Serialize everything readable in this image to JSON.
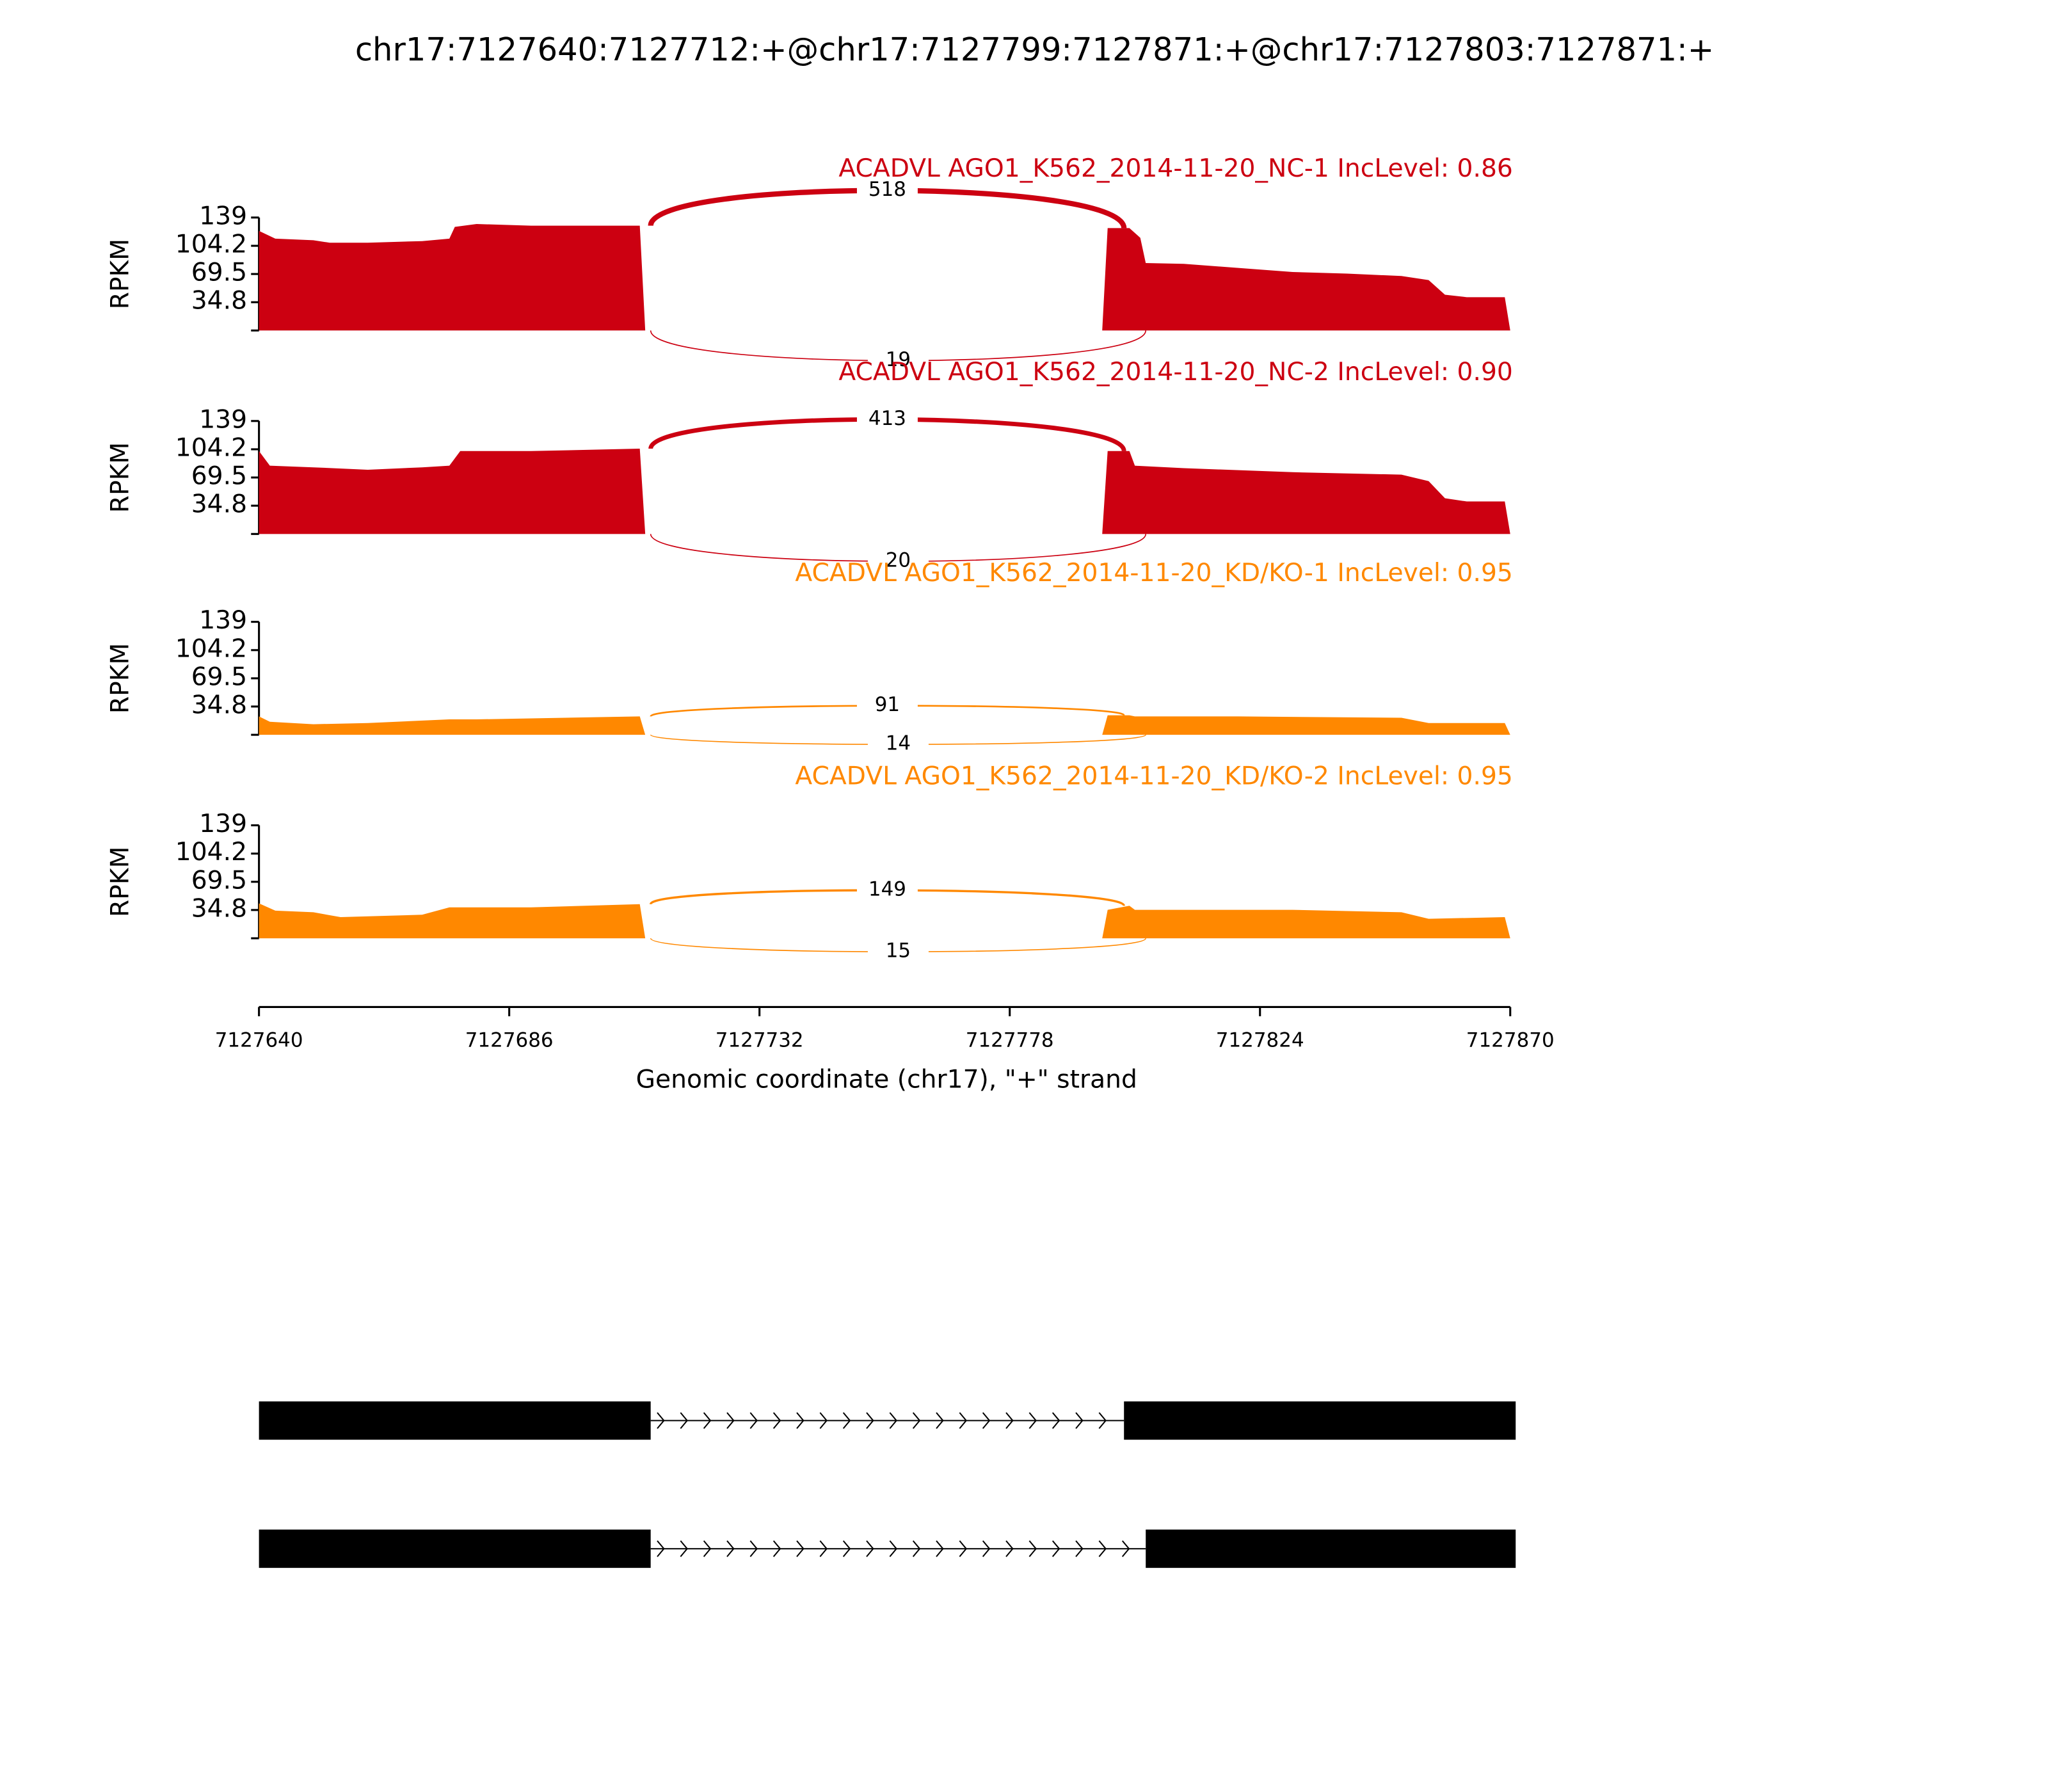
{
  "chart_data": {
    "type": "sashimi",
    "title": "chr17:7127640:7127712:+@chr17:7127799:7127871:+@chr17:7127803:7127871:+",
    "xlabel": "Genomic coordinate (chr17), \"+\" strand",
    "ylabel": "RPKM",
    "xlim": [
      7127640,
      7127870
    ],
    "xticks": [
      7127640,
      7127686,
      7127732,
      7127778,
      7127824,
      7127870
    ],
    "ylim": [
      0,
      139
    ],
    "yticks": [
      34.8,
      69.5,
      104.2,
      139
    ],
    "tracks": [
      {
        "name": "ACADVL AGO1_K562_2014-11-20_NC-1 IncLevel: 0.86",
        "color": "#cc0011",
        "x": [
          7127640,
          7127643,
          7127650,
          7127653,
          7127660,
          7127670,
          7127675,
          7127676,
          7127680,
          7127690,
          7127700,
          7127710,
          7127711,
          7127795,
          7127796,
          7127800,
          7127802,
          7127803,
          7127810,
          7127820,
          7127830,
          7127840,
          7127850,
          7127855,
          7127858,
          7127862,
          7127869,
          7127870
        ],
        "values": [
          122.6,
          113,
          111,
          108,
          108,
          110,
          113,
          127.5,
          131,
          129,
          129,
          129,
          0,
          0,
          126,
          126,
          114,
          83,
          82,
          77,
          72,
          70,
          67,
          62,
          44,
          41,
          41,
          0
        ],
        "junctions": [
          {
            "start": 7127712,
            "end": 7127799,
            "count": 518
          },
          {
            "start": 7127712,
            "end": 7127803,
            "count": 19
          }
        ]
      },
      {
        "name": "ACADVL AGO1_K562_2014-11-20_NC-2 IncLevel: 0.90",
        "color": "#cc0011",
        "x": [
          7127640,
          7127642,
          7127650,
          7127660,
          7127670,
          7127675,
          7127677,
          7127690,
          7127710,
          7127711,
          7127795,
          7127796,
          7127800,
          7127801,
          7127810,
          7127830,
          7127850,
          7127855,
          7127858,
          7127862,
          7127869,
          7127870
        ],
        "values": [
          102,
          84,
          82,
          79,
          82,
          84,
          102,
          102,
          105,
          0,
          0,
          102,
          102,
          84,
          81,
          76,
          73,
          65,
          44,
          40,
          40,
          0
        ],
        "junctions": [
          {
            "start": 7127712,
            "end": 7127799,
            "count": 413
          },
          {
            "start": 7127712,
            "end": 7127803,
            "count": 20
          }
        ]
      },
      {
        "name": "ACADVL AGO1_K562_2014-11-20_KD/KO-1 IncLevel: 0.95",
        "color": "#ff8800",
        "x": [
          7127640,
          7127642,
          7127650,
          7127660,
          7127675,
          7127680,
          7127710,
          7127711,
          7127795,
          7127796,
          7127800,
          7127801,
          7127820,
          7127850,
          7127855,
          7127869,
          7127870
        ],
        "values": [
          22.6,
          16,
          13,
          14.5,
          19,
          19,
          22.6,
          0,
          0,
          24,
          24,
          22.6,
          22.6,
          21,
          14.5,
          14.5,
          0
        ],
        "junctions": [
          {
            "start": 7127712,
            "end": 7127799,
            "count": 91
          },
          {
            "start": 7127712,
            "end": 7127803,
            "count": 14
          }
        ]
      },
      {
        "name": "ACADVL AGO1_K562_2014-11-20_KD/KO-2 IncLevel: 0.95",
        "color": "#ff8800",
        "x": [
          7127640,
          7127643,
          7127650,
          7127655,
          7127670,
          7127675,
          7127690,
          7127710,
          7127711,
          7127795,
          7127796,
          7127800,
          7127801,
          7127830,
          7127850,
          7127855,
          7127869,
          7127870
        ],
        "values": [
          43,
          34,
          32,
          26,
          29,
          38,
          38,
          42,
          0,
          0,
          35,
          40,
          35,
          35,
          32,
          24,
          26,
          0
        ],
        "junctions": [
          {
            "start": 7127712,
            "end": 7127799,
            "count": 149
          },
          {
            "start": 7127712,
            "end": 7127803,
            "count": 15
          }
        ]
      }
    ],
    "transcripts": [
      {
        "exons": [
          [
            7127640,
            7127712
          ],
          [
            7127799,
            7127871
          ]
        ]
      },
      {
        "exons": [
          [
            7127640,
            7127712
          ],
          [
            7127803,
            7127871
          ]
        ]
      }
    ]
  }
}
